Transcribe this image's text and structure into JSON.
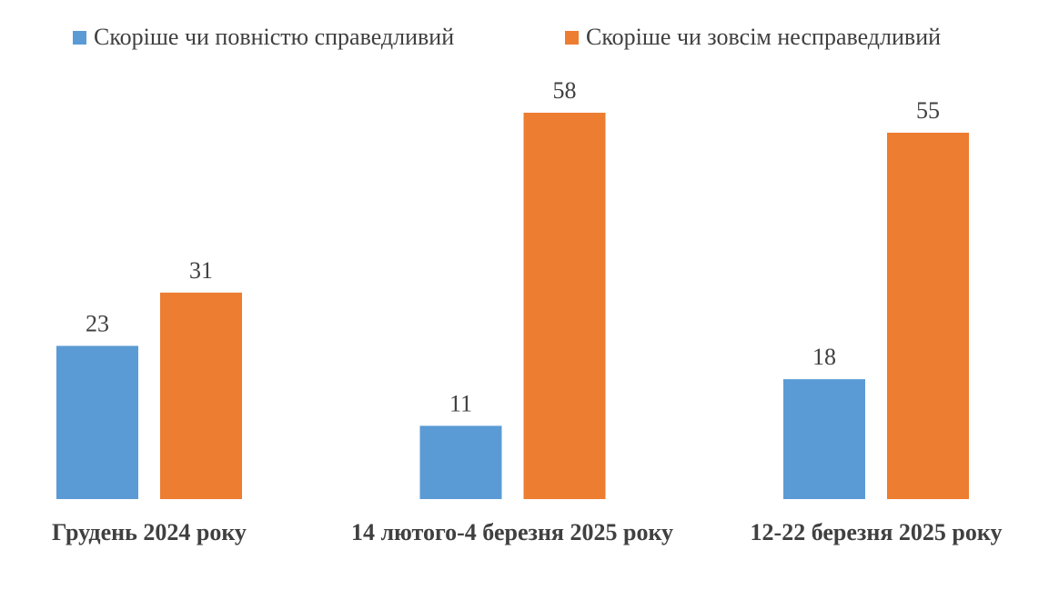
{
  "chart_data": {
    "type": "bar",
    "categories": [
      "Грудень 2024 року",
      "14 лютого-4 березня 2025 року",
      "12-22 березня 2025 року"
    ],
    "series": [
      {
        "name": "Скоріше чи повністю справедливий",
        "values": [
          23,
          11,
          18
        ],
        "color": "#5B9BD5"
      },
      {
        "name": "Скоріше чи зовсім несправедливий",
        "values": [
          31,
          58,
          55
        ],
        "color": "#ED7D31"
      }
    ],
    "title": "",
    "xlabel": "",
    "ylabel": "",
    "ylim": [
      0,
      60
    ],
    "grid": false,
    "legend": "top",
    "data_labels": true
  }
}
